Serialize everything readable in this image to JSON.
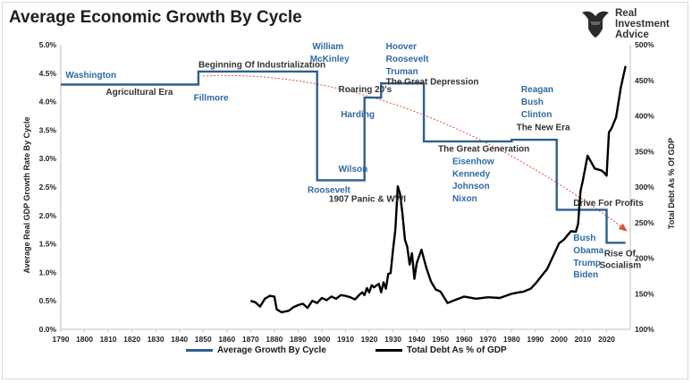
{
  "title": "Average Economic Growth By Cycle",
  "logo": {
    "lines": [
      "Real",
      "Investment",
      "Advice"
    ],
    "icon": "bull-head-icon"
  },
  "colors": {
    "growth": "#2e5f8e",
    "debt": "#000000",
    "trend": "#e0503a",
    "label_blue": "#2e6aa3",
    "label_dark": "#333333"
  },
  "chart_data": {
    "type": "line",
    "xlabel": "",
    "ylabel": "Average Real GDP Growth Rate By Cycle",
    "y2label": "Total Debt As % Of GDP",
    "xlim": [
      1790,
      2030
    ],
    "ylim": [
      0,
      5
    ],
    "y2lim": [
      100,
      500
    ],
    "x_ticks": [
      1790,
      1800,
      1810,
      1820,
      1830,
      1840,
      1850,
      1860,
      1870,
      1880,
      1890,
      1900,
      1910,
      1920,
      1930,
      1940,
      1950,
      1960,
      1970,
      1980,
      1990,
      2000,
      2010,
      2020
    ],
    "y_ticks": [
      "0.0%",
      "0.5%",
      "1.0%",
      "1.5%",
      "2.0%",
      "2.5%",
      "3.0%",
      "3.5%",
      "4.0%",
      "4.5%",
      "5.0%"
    ],
    "y2_ticks": [
      "100%",
      "150%",
      "200%",
      "250%",
      "300%",
      "350%",
      "400%",
      "450%",
      "500%"
    ],
    "legend_position": "bottom",
    "series": [
      {
        "name": "Average Growth By Cycle",
        "axis": "left",
        "step": true,
        "x": [
          1790,
          1848,
          1848,
          1898,
          1898,
          1918,
          1918,
          1925,
          1925,
          1943,
          1943,
          1980,
          1980,
          1999,
          1999,
          2020,
          2020,
          2028
        ],
        "y": [
          4.3,
          4.3,
          4.53,
          4.53,
          2.62,
          2.62,
          4.07,
          4.07,
          4.32,
          4.32,
          3.3,
          3.3,
          3.33,
          3.33,
          2.1,
          2.1,
          1.52,
          1.52
        ]
      },
      {
        "name": "Total Debt As % of GDP",
        "axis": "right",
        "x": [
          1870,
          1872,
          1874,
          1876,
          1878,
          1880,
          1881,
          1883,
          1886,
          1888,
          1890,
          1892,
          1894,
          1896,
          1898,
          1900,
          1902,
          1904,
          1906,
          1908,
          1910,
          1912,
          1914,
          1916,
          1917,
          1918,
          1919,
          1920,
          1921,
          1922,
          1924,
          1925,
          1926,
          1927,
          1928,
          1929,
          1930,
          1931,
          1932,
          1933,
          1934,
          1935,
          1936,
          1937,
          1938,
          1939,
          1940,
          1942,
          1944,
          1946,
          1948,
          1950,
          1953,
          1956,
          1960,
          1965,
          1970,
          1975,
          1980,
          1983,
          1985,
          1988,
          1990,
          1995,
          2000,
          2002,
          2005,
          2007,
          2008,
          2009,
          2010,
          2012,
          2015,
          2018,
          2019,
          2020,
          2021,
          2022,
          2024,
          2026,
          2028
        ],
        "y": [
          140,
          138,
          132,
          143,
          147,
          146,
          128,
          124,
          126,
          131,
          134,
          136,
          130,
          140,
          137,
          144,
          141,
          146,
          143,
          148,
          147,
          145,
          142,
          149,
          152,
          148,
          158,
          152,
          162,
          159,
          164,
          152,
          166,
          157,
          178,
          179,
          212,
          240,
          301,
          290,
          262,
          226,
          216,
          191,
          207,
          171,
          193,
          212,
          187,
          167,
          156,
          153,
          137,
          141,
          146,
          143,
          145,
          144,
          150,
          152,
          153,
          157,
          164,
          185,
          221,
          226,
          238,
          237,
          248,
          294,
          309,
          344,
          326,
          323,
          320,
          316,
          377,
          382,
          398,
          440,
          470
        ]
      }
    ],
    "trend_arrow": {
      "x": [
        1850,
        2028
      ],
      "y": [
        4.45,
        1.75
      ]
    },
    "annotations": [
      {
        "text": "Washington",
        "x": 1792,
        "y": 4.42,
        "color": "blue"
      },
      {
        "text": "Agricultural Era",
        "x": 1809,
        "y": 4.12,
        "color": "dark"
      },
      {
        "text": "Beginning Of Industrialization",
        "x": 1848,
        "y": 4.6,
        "color": "dark"
      },
      {
        "text": "Fillmore",
        "x": 1846,
        "y": 4.02,
        "color": "blue"
      },
      {
        "text": "William",
        "x": 1896,
        "y": 4.92,
        "color": "blue"
      },
      {
        "text": "McKinley",
        "x": 1895,
        "y": 4.7,
        "color": "blue"
      },
      {
        "text": "Wilson",
        "x": 1907,
        "y": 2.77,
        "color": "blue"
      },
      {
        "text": "Roosevelt",
        "x": 1894,
        "y": 2.4,
        "color": "blue"
      },
      {
        "text": "1907 Panic & WWI",
        "x": 1903,
        "y": 2.24,
        "color": "dark"
      },
      {
        "text": "Roaring 20's",
        "x": 1907,
        "y": 4.17,
        "color": "dark"
      },
      {
        "text": "Harding",
        "x": 1908,
        "y": 3.73,
        "color": "blue"
      },
      {
        "text": "Hoover",
        "x": 1927,
        "y": 4.92,
        "color": "blue"
      },
      {
        "text": "Roosevelt",
        "x": 1927,
        "y": 4.7,
        "color": "blue"
      },
      {
        "text": "Truman",
        "x": 1927,
        "y": 4.48,
        "color": "blue"
      },
      {
        "text": "The Great Depression",
        "x": 1927,
        "y": 4.3,
        "color": "dark"
      },
      {
        "text": "The Great Generation",
        "x": 1949,
        "y": 3.12,
        "color": "dark"
      },
      {
        "text": "Eisenhow",
        "x": 1955,
        "y": 2.9,
        "color": "blue"
      },
      {
        "text": "Kennedy",
        "x": 1955,
        "y": 2.68,
        "color": "blue"
      },
      {
        "text": "Johnson",
        "x": 1955,
        "y": 2.47,
        "color": "blue"
      },
      {
        "text": "Nixon",
        "x": 1955,
        "y": 2.25,
        "color": "blue"
      },
      {
        "text": "Reagan",
        "x": 1984,
        "y": 4.17,
        "color": "blue"
      },
      {
        "text": "Bush",
        "x": 1984,
        "y": 3.95,
        "color": "blue"
      },
      {
        "text": "Clinton",
        "x": 1984,
        "y": 3.73,
        "color": "blue"
      },
      {
        "text": "The New Era",
        "x": 1982,
        "y": 3.5,
        "color": "dark"
      },
      {
        "text": "Drive For Profits",
        "x": 2006,
        "y": 2.17,
        "color": "dark"
      },
      {
        "text": "Bush",
        "x": 2006,
        "y": 1.56,
        "color": "blue"
      },
      {
        "text": "Obama",
        "x": 2006,
        "y": 1.34,
        "color": "blue"
      },
      {
        "text": "Trump",
        "x": 2006,
        "y": 1.12,
        "color": "blue"
      },
      {
        "text": "Biden",
        "x": 2006,
        "y": 0.91,
        "color": "blue"
      },
      {
        "text": "Rise Of",
        "x": 2019,
        "y": 1.28,
        "color": "dark"
      },
      {
        "text": "Socialism",
        "x": 2017,
        "y": 1.08,
        "color": "dark"
      }
    ]
  }
}
